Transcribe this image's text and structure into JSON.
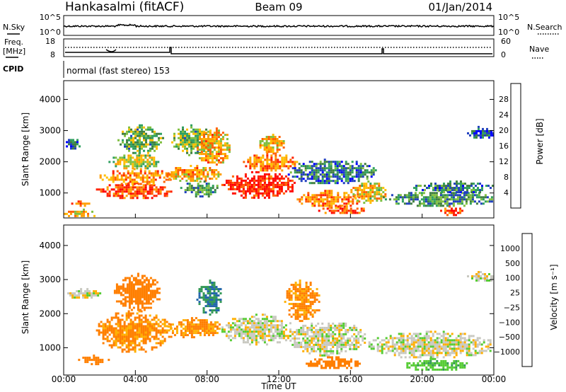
{
  "header": {
    "station": "Hankasalmi (fitACF)",
    "beam": "Beam 09",
    "date": "01/Jan/2014"
  },
  "strips": {
    "nsky_label": "N.Sky",
    "nsearch_label": "N.Search",
    "freq_label_1": "Freq.",
    "freq_label_2": "[MHz]",
    "nave_label": "Nave",
    "cpid_label": "CPID",
    "cpid_text": "normal (fast stereo) 153",
    "nsky_ticks": [
      "10^5",
      "10^0"
    ],
    "nsearch_ticks": [
      "10^5",
      "10^0"
    ],
    "freq_ticks": [
      "18",
      "8"
    ],
    "nave_ticks": [
      "60",
      "0"
    ]
  },
  "chart_data": [
    {
      "type": "heatmap",
      "panel": "power",
      "ylabel": "Slant Range [km]",
      "ylim": [
        200,
        4600
      ],
      "yticks": [
        1000,
        2000,
        3000,
        4000
      ],
      "xlim": [
        0,
        24
      ],
      "colorbar": {
        "label": "Power [dB]",
        "ticks": [
          "28",
          "24",
          "20",
          "16",
          "12",
          "8",
          "4"
        ],
        "colors": [
          "#0000ff",
          "#1f3fbf",
          "#3f7f3f",
          "#2f9f5f",
          "#7fbf3f",
          "#ffbf00",
          "#ff9f00",
          "#ff6000",
          "#ff2000",
          "#ff0000"
        ]
      },
      "blobs": [
        {
          "t0": 0.0,
          "t1": 0.9,
          "r0": 2450,
          "r1": 2800,
          "v": 6
        },
        {
          "t0": 0.0,
          "t1": 1.9,
          "r0": 250,
          "r1": 500,
          "v": 18
        },
        {
          "t0": 0.3,
          "t1": 1.5,
          "r0": 620,
          "r1": 760,
          "v": 22
        },
        {
          "t0": 1.8,
          "t1": 6.2,
          "r0": 850,
          "r1": 1350,
          "v": 26
        },
        {
          "t0": 2.0,
          "t1": 6.0,
          "r0": 1300,
          "r1": 1800,
          "v": 22
        },
        {
          "t0": 2.5,
          "t1": 5.4,
          "r0": 1800,
          "r1": 2300,
          "v": 16
        },
        {
          "t0": 3.0,
          "t1": 5.5,
          "r0": 2300,
          "r1": 3200,
          "v": 12
        },
        {
          "t0": 5.5,
          "t1": 8.8,
          "r0": 1400,
          "r1": 1900,
          "v": 20
        },
        {
          "t0": 6.5,
          "t1": 8.7,
          "r0": 900,
          "r1": 1400,
          "v": 10
        },
        {
          "t0": 6.0,
          "t1": 8.3,
          "r0": 2200,
          "r1": 3200,
          "v": 12
        },
        {
          "t0": 7.3,
          "t1": 9.3,
          "r0": 1900,
          "r1": 3100,
          "v": 20
        },
        {
          "t0": 8.8,
          "t1": 12.9,
          "r0": 850,
          "r1": 1700,
          "v": 28
        },
        {
          "t0": 10.0,
          "t1": 13.0,
          "r0": 1700,
          "r1": 2300,
          "v": 22
        },
        {
          "t0": 10.8,
          "t1": 12.3,
          "r0": 2300,
          "r1": 2900,
          "v": 18
        },
        {
          "t0": 12.5,
          "t1": 17.5,
          "r0": 1300,
          "r1": 2100,
          "v": 8
        },
        {
          "t0": 13.0,
          "t1": 16.5,
          "r0": 550,
          "r1": 1100,
          "v": 22
        },
        {
          "t0": 14.2,
          "t1": 16.8,
          "r0": 350,
          "r1": 600,
          "v": 26
        },
        {
          "t0": 16.0,
          "t1": 18.0,
          "r0": 700,
          "r1": 1400,
          "v": 18
        },
        {
          "t0": 17.8,
          "t1": 24.0,
          "r0": 600,
          "r1": 1100,
          "v": 10
        },
        {
          "t0": 19.5,
          "t1": 24.0,
          "r0": 1000,
          "r1": 1400,
          "v": 8
        },
        {
          "t0": 21.0,
          "t1": 22.2,
          "r0": 300,
          "r1": 600,
          "v": 26
        },
        {
          "t0": 22.5,
          "t1": 24.0,
          "r0": 2750,
          "r1": 3150,
          "v": 6
        }
      ]
    },
    {
      "type": "heatmap",
      "panel": "velocity",
      "ylabel": "Slant Range [km]",
      "xlabel": "Time UT",
      "ylim": [
        200,
        4600
      ],
      "yticks": [
        1000,
        2000,
        3000,
        4000
      ],
      "xlim": [
        0,
        24
      ],
      "xticks": [
        "00:00",
        "04:00",
        "08:00",
        "12:00",
        "16:00",
        "20:00",
        "00:00"
      ],
      "colorbar": {
        "label": "Velocity [m s⁻¹]",
        "ticks": [
          "1000",
          "500",
          "100",
          "25",
          "−25",
          "−100",
          "−500",
          "−1000"
        ],
        "colors": [
          "#ff0000",
          "#ff3f00",
          "#ff7f00",
          "#ffaf00",
          "#c8c8c0",
          "#c8c8c0",
          "#55cc33",
          "#339955",
          "#2266aa",
          "#1133cc"
        ]
      },
      "blobs": [
        {
          "t0": 0.2,
          "t1": 2.0,
          "r0": 2450,
          "r1": 2750,
          "v": 0
        },
        {
          "t0": 0.8,
          "t1": 2.5,
          "r0": 550,
          "r1": 800,
          "v": -250
        },
        {
          "t0": 1.8,
          "t1": 6.0,
          "r0": 900,
          "r1": 2100,
          "v": -120
        },
        {
          "t0": 2.8,
          "t1": 5.4,
          "r0": 2100,
          "r1": 3200,
          "v": -150
        },
        {
          "t0": 5.8,
          "t1": 8.8,
          "r0": 1300,
          "r1": 1900,
          "v": -110
        },
        {
          "t0": 7.4,
          "t1": 8.8,
          "r0": 2000,
          "r1": 3000,
          "v": 300
        },
        {
          "t0": 8.8,
          "t1": 12.8,
          "r0": 1100,
          "r1": 2000,
          "v": 0
        },
        {
          "t0": 12.3,
          "t1": 14.3,
          "r0": 1800,
          "r1": 3000,
          "v": -120
        },
        {
          "t0": 12.6,
          "t1": 16.8,
          "r0": 800,
          "r1": 1800,
          "v": 0
        },
        {
          "t0": 13.5,
          "t1": 16.5,
          "r0": 400,
          "r1": 750,
          "v": -200
        },
        {
          "t0": 17.0,
          "t1": 24.0,
          "r0": 700,
          "r1": 1500,
          "v": 0
        },
        {
          "t0": 19.0,
          "t1": 22.5,
          "r0": 350,
          "r1": 700,
          "v": 80
        },
        {
          "t0": 22.5,
          "t1": 24.0,
          "r0": 2950,
          "r1": 3250,
          "v": 0
        }
      ]
    }
  ]
}
